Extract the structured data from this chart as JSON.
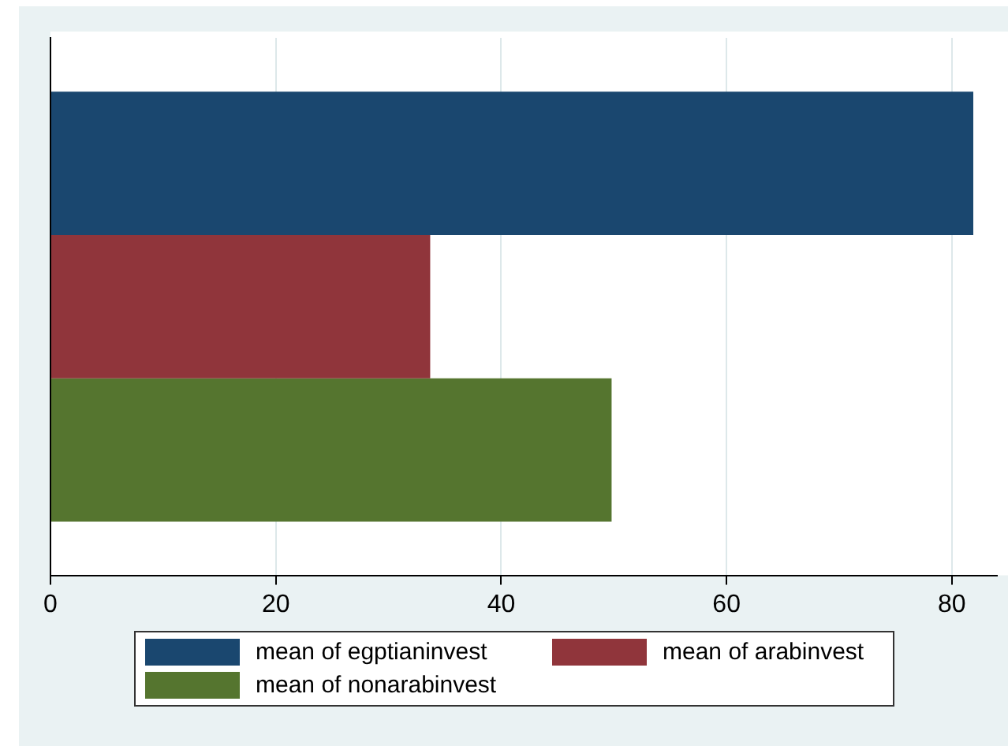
{
  "chart_data": {
    "type": "bar",
    "orientation": "horizontal",
    "categories": [
      null
    ],
    "series": [
      {
        "name": "mean of egptianinvest",
        "color": "#1a476f",
        "values": [
          81.9
        ]
      },
      {
        "name": "mean of arabinvest",
        "color": "#90353b",
        "values": [
          33.7
        ]
      },
      {
        "name": "mean of nonarabinvest",
        "color": "#55752f",
        "values": [
          49.8
        ]
      }
    ],
    "xlim": [
      0,
      84
    ],
    "xticks": [
      0,
      20,
      40,
      60,
      80
    ],
    "grid": "x",
    "legend": "bottom"
  }
}
